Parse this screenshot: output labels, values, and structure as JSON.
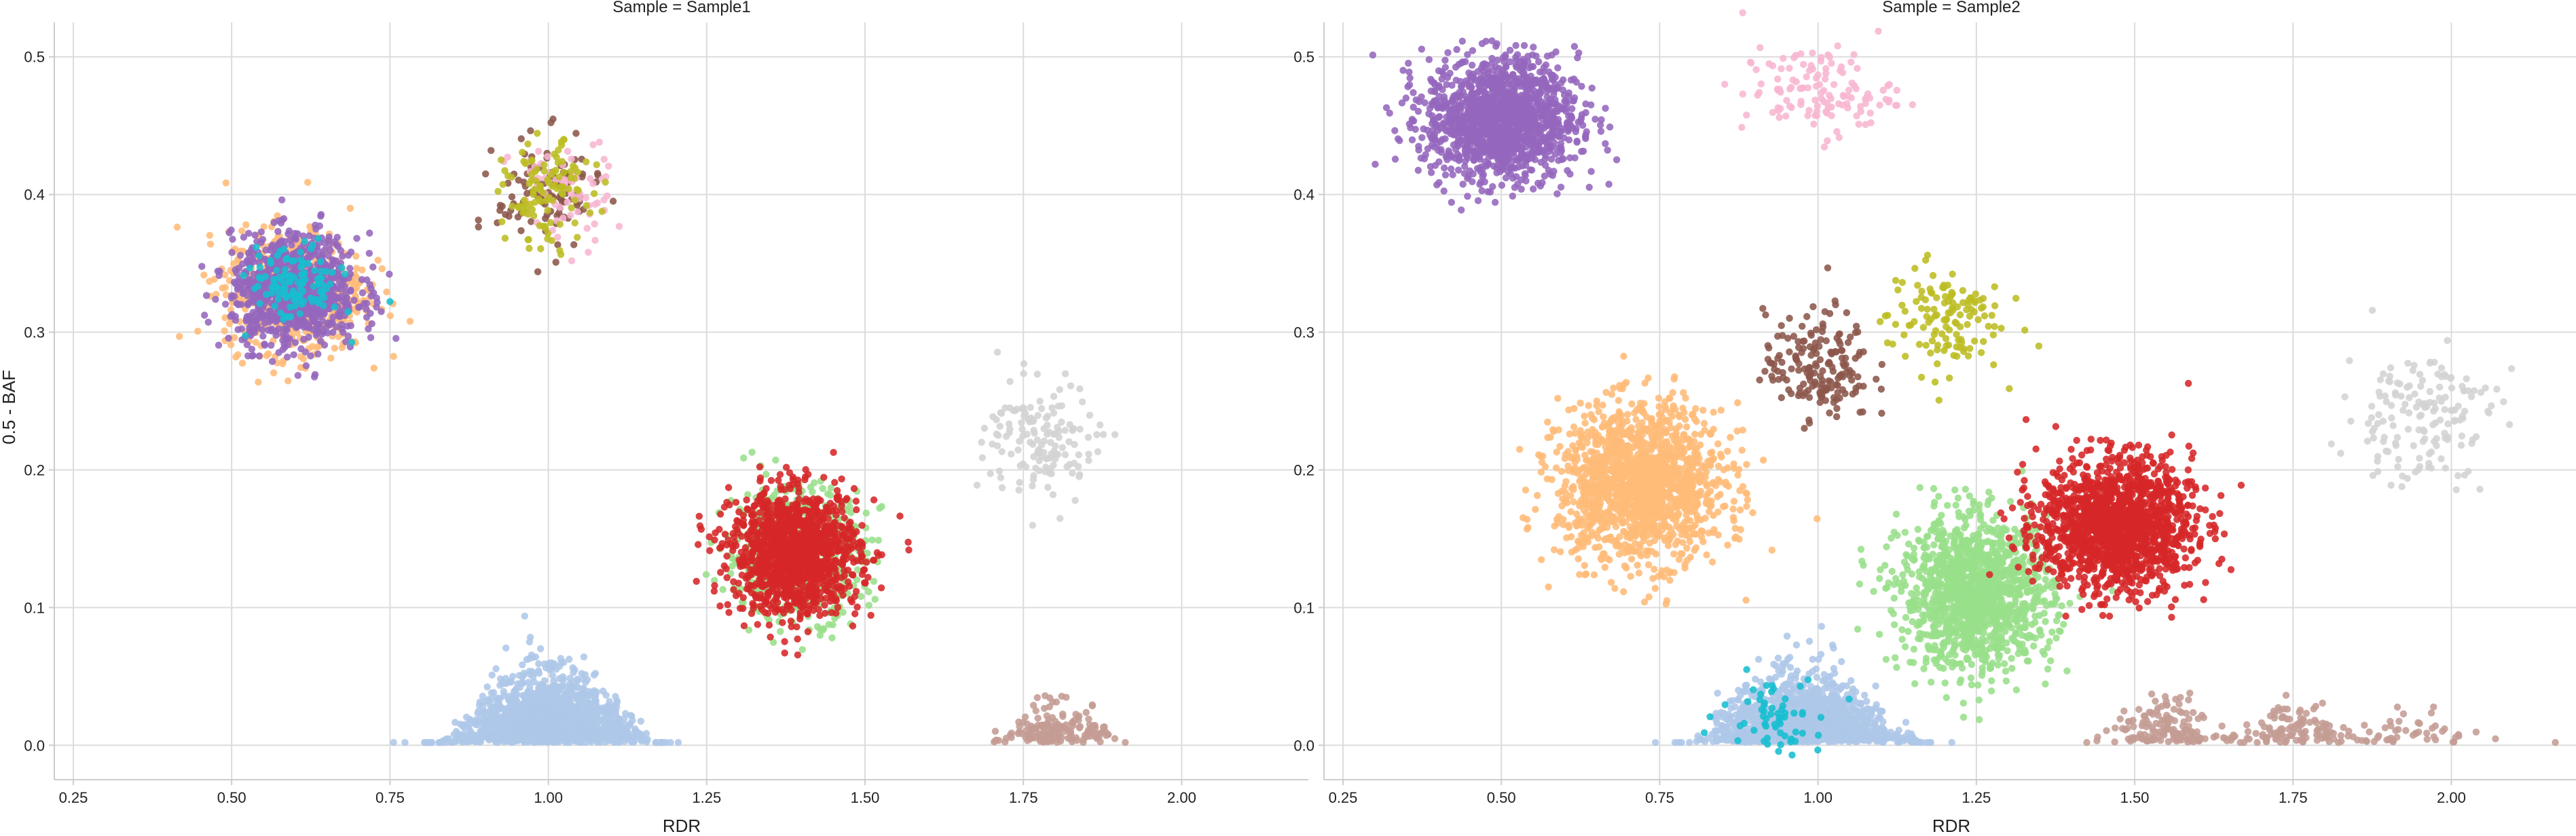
{
  "chart_data": {
    "type": "scatter",
    "facet_label_template": "Sample = {sample}",
    "xlabel": "RDR",
    "ylabel": "0.5 - BAF",
    "xlim": [
      0.22,
      2.2
    ],
    "ylim": [
      -0.025,
      0.525
    ],
    "x_ticks": [
      "0.25",
      "0.50",
      "0.75",
      "1.00",
      "1.25",
      "1.50",
      "1.75",
      "2.00"
    ],
    "y_ticks": [
      "0.0",
      "0.1",
      "0.2",
      "0.3",
      "0.4",
      "0.5"
    ],
    "grid": true,
    "panels": [
      {
        "sample": "Sample1",
        "title": "Sample = Sample1",
        "clusters": [
          {
            "color": "#aec7e8",
            "x": 1.0,
            "y": 0.03,
            "sx": 0.065,
            "sy": 0.02,
            "n": 1600,
            "kind": "mound"
          },
          {
            "color": "#ffbb78",
            "x": 0.6,
            "y": 0.33,
            "sx": 0.055,
            "sy": 0.022,
            "n": 700,
            "kind": "blob"
          },
          {
            "color": "#9467bd",
            "x": 0.6,
            "y": 0.33,
            "sx": 0.05,
            "sy": 0.02,
            "n": 900,
            "kind": "blob"
          },
          {
            "color": "#17becf",
            "x": 0.6,
            "y": 0.335,
            "sx": 0.035,
            "sy": 0.014,
            "n": 120,
            "kind": "blob"
          },
          {
            "color": "#8c564b",
            "x": 1.0,
            "y": 0.4,
            "sx": 0.04,
            "sy": 0.02,
            "n": 110,
            "kind": "blob"
          },
          {
            "color": "#f7b6d2",
            "x": 1.02,
            "y": 0.4,
            "sx": 0.04,
            "sy": 0.02,
            "n": 70,
            "kind": "blob"
          },
          {
            "color": "#bcbd22",
            "x": 1.0,
            "y": 0.4,
            "sx": 0.035,
            "sy": 0.018,
            "n": 110,
            "kind": "blob"
          },
          {
            "color": "#98df8a",
            "x": 1.39,
            "y": 0.14,
            "sx": 0.055,
            "sy": 0.024,
            "n": 600,
            "kind": "blob"
          },
          {
            "color": "#d62728",
            "x": 1.39,
            "y": 0.14,
            "sx": 0.05,
            "sy": 0.022,
            "n": 1300,
            "kind": "blob"
          },
          {
            "color": "#d3d3d3",
            "x": 1.78,
            "y": 0.22,
            "sx": 0.045,
            "sy": 0.022,
            "n": 150,
            "kind": "blob"
          },
          {
            "color": "#c49c94",
            "x": 1.8,
            "y": 0.012,
            "sx": 0.04,
            "sy": 0.012,
            "n": 170,
            "kind": "mound"
          }
        ]
      },
      {
        "sample": "Sample2",
        "title": "Sample = Sample2",
        "clusters": [
          {
            "color": "#9467bd",
            "x": 0.5,
            "y": 0.455,
            "sx": 0.06,
            "sy": 0.022,
            "n": 1400,
            "kind": "blob"
          },
          {
            "color": "#f7b6d2",
            "x": 1.0,
            "y": 0.475,
            "sx": 0.06,
            "sy": 0.016,
            "n": 130,
            "kind": "blob"
          },
          {
            "color": "#bcbd22",
            "x": 1.2,
            "y": 0.31,
            "sx": 0.045,
            "sy": 0.02,
            "n": 130,
            "kind": "blob"
          },
          {
            "color": "#8c564b",
            "x": 1.0,
            "y": 0.275,
            "sx": 0.042,
            "sy": 0.02,
            "n": 180,
            "kind": "blob"
          },
          {
            "color": "#ffbb78",
            "x": 0.72,
            "y": 0.19,
            "sx": 0.065,
            "sy": 0.028,
            "n": 1500,
            "kind": "blob"
          },
          {
            "color": "#d3d3d3",
            "x": 1.95,
            "y": 0.24,
            "sx": 0.06,
            "sy": 0.025,
            "n": 160,
            "kind": "blob"
          },
          {
            "color": "#98df8a",
            "x": 1.25,
            "y": 0.11,
            "sx": 0.06,
            "sy": 0.027,
            "n": 1300,
            "kind": "blob"
          },
          {
            "color": "#d62728",
            "x": 1.47,
            "y": 0.16,
            "sx": 0.06,
            "sy": 0.024,
            "n": 1500,
            "kind": "blob"
          },
          {
            "color": "#aec7e8",
            "x": 0.98,
            "y": 0.025,
            "sx": 0.07,
            "sy": 0.02,
            "n": 1300,
            "kind": "mound"
          },
          {
            "color": "#17becf",
            "x": 0.93,
            "y": 0.025,
            "sx": 0.04,
            "sy": 0.014,
            "n": 60,
            "kind": "blob"
          },
          {
            "color": "#c49c94",
            "x": 1.55,
            "y": 0.015,
            "sx": 0.045,
            "sy": 0.012,
            "n": 150,
            "kind": "mound"
          },
          {
            "color": "#c49c94",
            "x": 1.75,
            "y": 0.018,
            "sx": 0.045,
            "sy": 0.012,
            "n": 110,
            "kind": "mound"
          },
          {
            "color": "#c49c94",
            "x": 1.95,
            "y": 0.012,
            "sx": 0.05,
            "sy": 0.01,
            "n": 50,
            "kind": "mound"
          }
        ]
      }
    ]
  }
}
